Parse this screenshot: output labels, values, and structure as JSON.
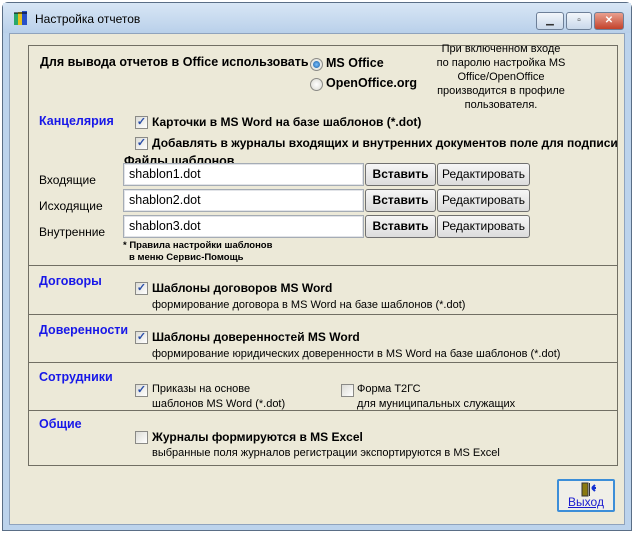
{
  "window": {
    "title": "Настройка отчетов",
    "minimize": "minimize",
    "maximize": "maximize",
    "close": "close"
  },
  "office": {
    "label": "Для вывода отчетов в Office использовать",
    "options": [
      {
        "label": "MS Office",
        "selected": true
      },
      {
        "label": "OpenOffice.org",
        "selected": false
      }
    ],
    "note": [
      "При включенном входе",
      "по паролю настройка MS",
      "Office/OpenOffice",
      "производится в профиле",
      "пользователя."
    ]
  },
  "kanc": {
    "title": "Канцелярия",
    "checks": [
      {
        "label": "Карточки в MS Word на базе шаблонов (*.dot)",
        "checked": true
      },
      {
        "label": "Добавлять в журналы входящих и внутренних документов поле для подписи",
        "checked": true
      }
    ],
    "files_title": "Файлы шаблонов",
    "rows": [
      {
        "label": "Входящие",
        "value": "shablon1.dot"
      },
      {
        "label": "Исходящие",
        "value": "shablon2.dot"
      },
      {
        "label": "Внутренние",
        "value": "shablon3.dot"
      }
    ],
    "insert_label": "Вставить",
    "edit_label": "Редактировать",
    "note": [
      "* Правила настройки шаблонов",
      "в меню Сервис-Помощь"
    ]
  },
  "dogovory": {
    "title": "Договоры",
    "check": "Шаблоны договоров MS Word",
    "checked": true,
    "sub": "формирование договора в MS Word на базе шаблонов (*.dot)"
  },
  "dover": {
    "title": "Доверенности",
    "check": "Шаблоны доверенностей MS Word",
    "checked": true,
    "sub": "формирование юридических доверенности в MS Word на базе шаблонов (*.dot)"
  },
  "sotr": {
    "title": "Сотрудники",
    "c1": "Приказы на основе",
    "c1sub": "шаблонов MS Word (*.dot)",
    "c1checked": true,
    "c2": "Форма Т2ГС",
    "c2sub": "для муниципальных служащих",
    "c2checked": false
  },
  "obshie": {
    "title": "Общие",
    "check": "Журналы формируются в MS Excel",
    "checked": false,
    "sub": "выбранные поля журналов регистрации экспортируются в MS Excel"
  },
  "exit_label": "Выход",
  "colors": {
    "section": "#1818e8",
    "background": "#ece9d8"
  }
}
